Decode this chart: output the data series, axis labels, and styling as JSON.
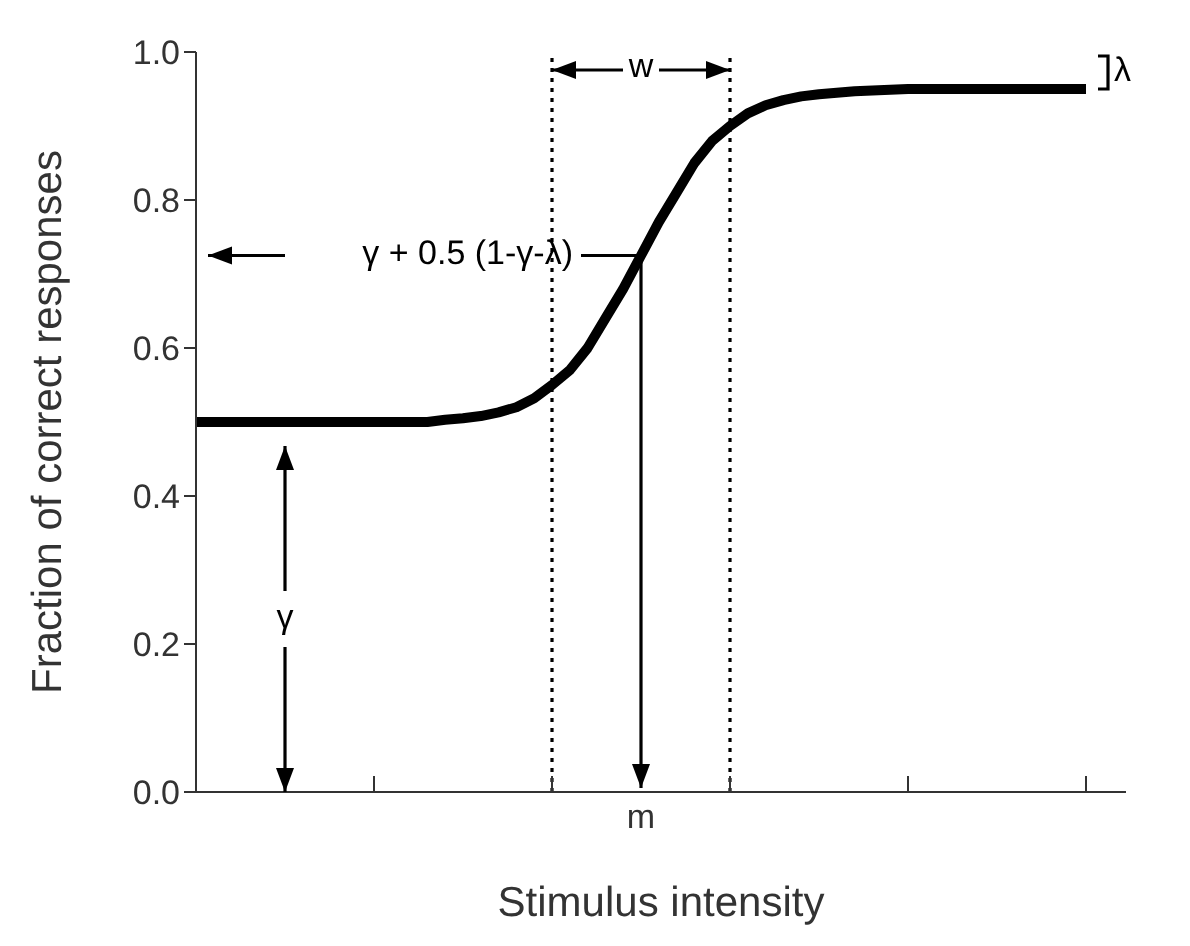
{
  "chart_data": {
    "type": "line",
    "xlabel": "Stimulus intensity",
    "ylabel": "Fraction of correct responses",
    "categories": [
      null,
      null,
      null,
      null,
      null,
      null,
      null,
      null,
      null,
      null,
      null,
      null,
      null,
      null,
      null,
      null,
      null,
      null,
      null,
      null,
      null,
      null,
      null,
      null,
      null,
      "m",
      null,
      null,
      null,
      null,
      null,
      null,
      null,
      null,
      null,
      null,
      null,
      null,
      null,
      null,
      null,
      null,
      null,
      null,
      null,
      null,
      null,
      null,
      null,
      null,
      null
    ],
    "series": [
      {
        "color": "#000000",
        "values": [
          0.5,
          0.5,
          0.5,
          0.5,
          0.5,
          0.5,
          0.5,
          0.5,
          0.5,
          0.5,
          0.5,
          0.5,
          0.5,
          0.5,
          0.503,
          0.505,
          0.508,
          0.513,
          0.52,
          0.532,
          0.55,
          0.57,
          0.6,
          0.64,
          0.68,
          0.725,
          0.77,
          0.81,
          0.85,
          0.88,
          0.9,
          0.917,
          0.928,
          0.935,
          0.94,
          0.943,
          0.945,
          0.947,
          0.948,
          0.949,
          0.95,
          0.95,
          0.95,
          0.95,
          0.95,
          0.95,
          0.95,
          0.95,
          0.95,
          0.95,
          0.95
        ]
      }
    ],
    "ylim": [
      0,
      1
    ],
    "yticks": [
      {
        "value": 0,
        "label": "0.0"
      },
      {
        "value": 0.2,
        "label": "0.2"
      },
      {
        "value": 0.4,
        "label": "0.4"
      },
      {
        "value": 0.6,
        "label": "0.6"
      },
      {
        "value": 0.8,
        "label": "0.8"
      },
      {
        "value": 1,
        "label": "1.0"
      }
    ],
    "annotations": [
      "w",
      {
        "text": "γ + 0.5 (1-γ-λ)",
        "x": "m",
        "y": 0.725
      },
      "γ",
      "λ"
    ]
  }
}
